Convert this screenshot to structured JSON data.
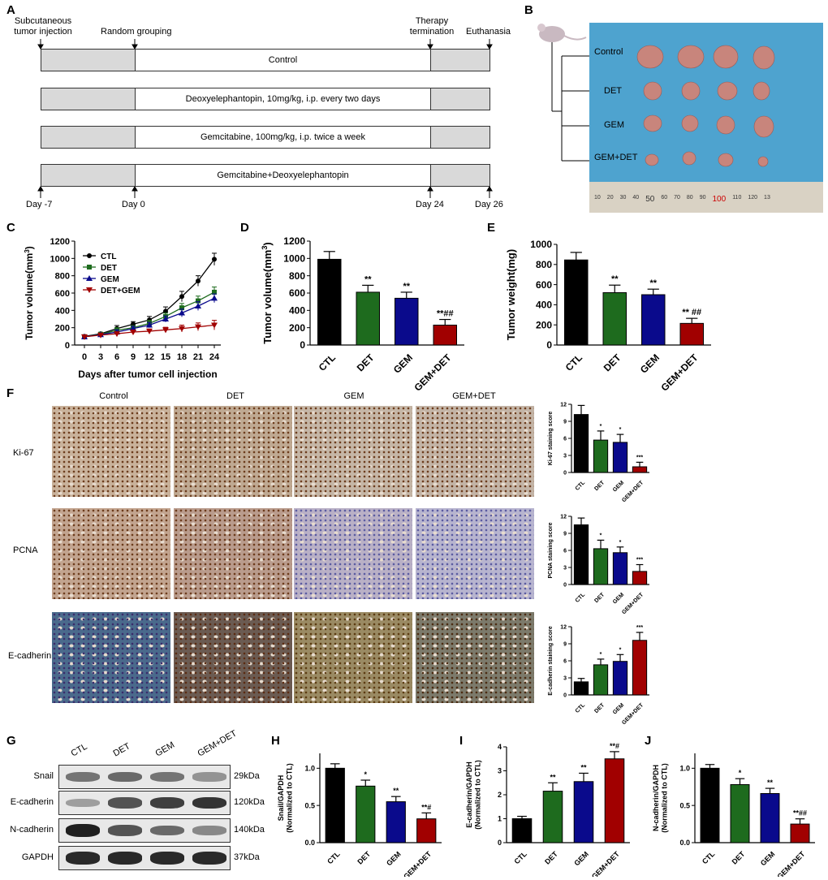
{
  "panels": {
    "A": "A",
    "B": "B",
    "C": "C",
    "D": "D",
    "E": "E",
    "F": "F",
    "G": "G",
    "H": "H",
    "I": "I",
    "J": "J"
  },
  "timeline": {
    "top_labels": {
      "injection": "Subcutaneous\ntumor injection",
      "grouping": "Random grouping",
      "termination": "Therapy\ntermination",
      "euthanasia": "Euthanasia"
    },
    "bottom_labels": {
      "d_minus7": "Day -7",
      "d0": "Day 0",
      "d24": "Day 24",
      "d26": "Day 26"
    },
    "bars": [
      {
        "label": "Control",
        "color": "#d9d9d9"
      },
      {
        "label": "Deoxyelephantopin, 10mg/kg, i.p. every two days",
        "color": "#ccf5b5"
      },
      {
        "label": "Gemcitabine, 100mg/kg, i.p. twice a week",
        "color": "#b8f0e6"
      },
      {
        "label": "Gemcitabine+Deoxyelephantopin",
        "color": "#fbd3ad"
      }
    ]
  },
  "photo_groups": [
    "Control",
    "DET",
    "GEM",
    "GEM+DET"
  ],
  "ruler_labels": [
    "10",
    "20",
    "30",
    "40",
    "50",
    "60",
    "70",
    "80",
    "90",
    "100",
    "110",
    "120",
    "13"
  ],
  "ihc": {
    "columns": [
      "Control",
      "DET",
      "GEM",
      "GEM+DET"
    ],
    "rows": [
      "Ki-67",
      "PCNA",
      "E-cadherin"
    ]
  },
  "western": {
    "lanes": [
      "CTL",
      "DET",
      "GEM",
      "GEM+DET"
    ],
    "proteins": [
      {
        "name": "Snail",
        "kda": "29kDa"
      },
      {
        "name": "E-cadherin",
        "kda": "120kDa"
      },
      {
        "name": "N-cadherin",
        "kda": "140kDa"
      },
      {
        "name": "GAPDH",
        "kda": "37kDa"
      }
    ]
  },
  "colors": {
    "CTL": "#000000",
    "DET": "#1e6b1e",
    "GEM": "#0a0a8c",
    "GEMDET": "#a10000"
  },
  "chart_data": [
    {
      "id": "C",
      "type": "line",
      "xlabel": "Days after tumor cell injection",
      "ylabel": "Tumor volume(mm3)",
      "x": [
        0,
        3,
        6,
        9,
        12,
        15,
        18,
        21,
        24
      ],
      "ylim": [
        0,
        1200
      ],
      "yticks": [
        0,
        200,
        400,
        600,
        800,
        1000,
        1200
      ],
      "series": [
        {
          "name": "CTL",
          "color": "#000000",
          "marker": "circle",
          "values": [
            100,
            130,
            190,
            240,
            290,
            390,
            560,
            740,
            990
          ],
          "err": [
            10,
            15,
            35,
            30,
            40,
            50,
            60,
            60,
            70
          ]
        },
        {
          "name": "DET",
          "color": "#1e6b1e",
          "marker": "square",
          "values": [
            95,
            125,
            170,
            200,
            250,
            330,
            430,
            510,
            610
          ],
          "err": [
            10,
            15,
            30,
            25,
            35,
            40,
            50,
            55,
            60
          ]
        },
        {
          "name": "GEM",
          "color": "#0a0a8c",
          "marker": "triangle",
          "values": [
            95,
            120,
            150,
            190,
            230,
            300,
            370,
            450,
            540
          ],
          "err": [
            10,
            15,
            25,
            25,
            30,
            35,
            45,
            50,
            50
          ]
        },
        {
          "name": "DET+GEM",
          "color": "#a10000",
          "marker": "triangle-down",
          "values": [
            95,
            115,
            130,
            150,
            160,
            175,
            190,
            210,
            230
          ],
          "err": [
            10,
            12,
            15,
            20,
            25,
            30,
            40,
            45,
            55
          ]
        }
      ]
    },
    {
      "id": "D",
      "type": "bar",
      "ylabel": "Tumor volume(mm3)",
      "categories": [
        "CTL",
        "DET",
        "GEM",
        "GEM+DET"
      ],
      "values": [
        990,
        610,
        540,
        230
      ],
      "err": [
        90,
        80,
        70,
        65
      ],
      "annotations": [
        "",
        "**",
        "**",
        "**##"
      ],
      "ylim": [
        0,
        1200
      ],
      "yticks": [
        0,
        200,
        400,
        600,
        800,
        1000,
        1200
      ]
    },
    {
      "id": "E",
      "type": "bar",
      "ylabel": "Tumor weight(mg)",
      "categories": [
        "CTL",
        "DET",
        "GEM",
        "GEM+DET"
      ],
      "values": [
        845,
        520,
        500,
        215
      ],
      "err": [
        75,
        75,
        55,
        50
      ],
      "annotations": [
        "",
        "**",
        "**",
        "** ##"
      ],
      "ylim": [
        0,
        1000
      ],
      "yticks": [
        0,
        200,
        400,
        600,
        800,
        1000
      ]
    },
    {
      "id": "F1",
      "type": "bar",
      "ylabel": "Ki-67 staining score",
      "categories": [
        "CTL",
        "DET",
        "GEM",
        "GEM+DET"
      ],
      "values": [
        10.2,
        5.7,
        5.3,
        1.0
      ],
      "err": [
        1.6,
        1.6,
        1.4,
        0.8
      ],
      "annotations": [
        "",
        "*",
        "*",
        "***"
      ],
      "ylim": [
        0,
        12
      ],
      "yticks": [
        0,
        3,
        6,
        9,
        12
      ]
    },
    {
      "id": "F2",
      "type": "bar",
      "ylabel": "PCNA staining score",
      "categories": [
        "CTL",
        "DET",
        "GEM",
        "GEM+DET"
      ],
      "values": [
        10.5,
        6.3,
        5.6,
        2.3
      ],
      "err": [
        1.2,
        1.5,
        1.0,
        1.2
      ],
      "annotations": [
        "",
        "*",
        "*",
        "***"
      ],
      "ylim": [
        0,
        12
      ],
      "yticks": [
        0,
        3,
        6,
        9,
        12
      ]
    },
    {
      "id": "F3",
      "type": "bar",
      "ylabel": "E-cadherin staining score",
      "categories": [
        "CTL",
        "DET",
        "GEM",
        "GEM+DET"
      ],
      "values": [
        2.3,
        5.3,
        5.9,
        9.6
      ],
      "err": [
        0.6,
        1.0,
        1.2,
        1.4
      ],
      "annotations": [
        "",
        "*",
        "*",
        "***"
      ],
      "ylim": [
        0,
        12
      ],
      "yticks": [
        0,
        3,
        6,
        9,
        12
      ]
    },
    {
      "id": "H",
      "type": "bar",
      "ylabel": "Snail/GAPDH\n(Normalized to CTL)",
      "categories": [
        "CTL",
        "DET",
        "GEM",
        "GEM+DET"
      ],
      "values": [
        1.0,
        0.76,
        0.55,
        0.32
      ],
      "err": [
        0.06,
        0.08,
        0.07,
        0.08
      ],
      "annotations": [
        "",
        "*",
        "**",
        "**#"
      ],
      "ylim": [
        0,
        1.2
      ],
      "yticks": [
        0,
        0.5,
        1.0
      ],
      "ytick_labels": [
        "0.0",
        "0.5",
        "1.0"
      ]
    },
    {
      "id": "I",
      "type": "bar",
      "ylabel": "E-cadherin/GAPDH\n(Normalized to CTL)",
      "categories": [
        "CTL",
        "DET",
        "GEM",
        "GEM+DET"
      ],
      "values": [
        1.0,
        2.15,
        2.55,
        3.5
      ],
      "err": [
        0.1,
        0.35,
        0.35,
        0.3
      ],
      "annotations": [
        "",
        "**",
        "**",
        "**#"
      ],
      "ylim": [
        0,
        4
      ],
      "yticks": [
        0,
        1,
        2,
        3,
        4
      ],
      "ytick_labels": [
        "0",
        "1",
        "2",
        "3",
        "4"
      ]
    },
    {
      "id": "J",
      "type": "bar",
      "ylabel": "N-cadherin/GAPDH\n(Normalized to CTL)",
      "categories": [
        "CTL",
        "DET",
        "GEM",
        "GEM+DET"
      ],
      "values": [
        1.0,
        0.78,
        0.66,
        0.25
      ],
      "err": [
        0.05,
        0.08,
        0.07,
        0.07
      ],
      "annotations": [
        "",
        "*",
        "**",
        "**##"
      ],
      "ylim": [
        0,
        1.2
      ],
      "yticks": [
        0,
        0.5,
        1.0
      ],
      "ytick_labels": [
        "0.0",
        "0.5",
        "1.0"
      ]
    }
  ]
}
